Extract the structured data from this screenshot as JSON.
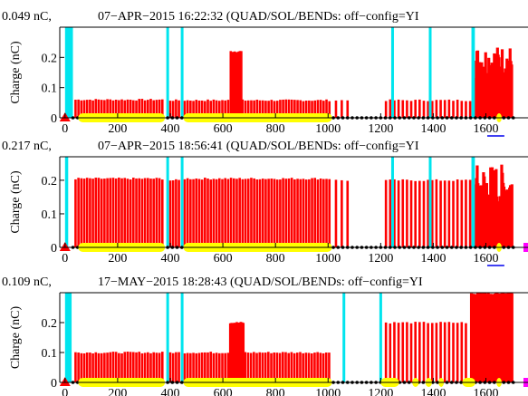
{
  "colors": {
    "bar_red": "#ff0000",
    "bar_cyan": "#00e5ee",
    "marker_yellow": "#ffff00",
    "marker_black": "#000000",
    "marker_red_triangle": "#ff0000",
    "marker_magenta": "#ff00ff",
    "link_blue": "#0000ee"
  },
  "chart_data": [
    {
      "type": "bar",
      "charge_label": "0.049 nC,",
      "title": "07−APR−2015 16:22:32 (QUAD/SOL/BENDs: off−config=YI",
      "ylabel": "Charge (nC)",
      "xlim": [
        -20,
        1760
      ],
      "ylim": [
        0,
        0.3
      ],
      "xticks": [
        0,
        200,
        400,
        600,
        800,
        1000,
        1200,
        1400,
        1600
      ],
      "xtick_labels": [
        "0",
        "200",
        "400",
        "600",
        "800",
        "1000",
        "1200",
        "1400",
        "1600"
      ],
      "yticks": [
        0.1,
        0.2
      ],
      "ytick_labels": [
        "0.1",
        "0.2"
      ],
      "segments": [
        {
          "start": 40,
          "end": 380,
          "step": 11,
          "value": 0.06
        },
        {
          "start": 400,
          "end": 438,
          "step": 11,
          "value": 0.058
        },
        {
          "start": 455,
          "end": 630,
          "step": 11,
          "value": 0.058
        },
        {
          "start": 630,
          "end": 670,
          "step": 5,
          "value": 0.22
        },
        {
          "start": 675,
          "end": 1010,
          "step": 11,
          "value": 0.058
        },
        {
          "start": 1030,
          "end": 1080,
          "step": 22,
          "value": 0.058
        },
        {
          "start": 1220,
          "end": 1555,
          "step": 16,
          "value": 0.058
        }
      ],
      "dense_region": {
        "start": 1560,
        "end": 1700,
        "step": 3,
        "min": 0.13,
        "max": 0.24
      },
      "cyan_bars": [
        {
          "x0": 0,
          "x1": 30,
          "value": 0.3
        },
        {
          "x0": 385,
          "x1": 393,
          "value": 0.3
        },
        {
          "x0": 440,
          "x1": 448,
          "value": 0.3
        },
        {
          "x0": 1240,
          "x1": 1248,
          "value": 0.3
        },
        {
          "x0": 1383,
          "x1": 1391,
          "value": 0.3
        },
        {
          "x0": 1545,
          "x1": 1558,
          "value": 0.3
        }
      ],
      "yellow_band": [
        {
          "x0": 50,
          "x1": 380
        },
        {
          "x0": 450,
          "x1": 1015
        },
        {
          "x0": 1640,
          "x1": 1660
        }
      ]
    },
    {
      "type": "bar",
      "charge_label": "0.217 nC,",
      "title": "07−APR−2015 18:56:41 (QUAD/SOL/BENDs: off−config=YI",
      "ylabel": "Charge (nC)",
      "xlim": [
        -20,
        1760
      ],
      "ylim": [
        0,
        0.27
      ],
      "xticks": [
        0,
        200,
        400,
        600,
        800,
        1000,
        1200,
        1400,
        1600
      ],
      "xtick_labels": [
        "0",
        "200",
        "400",
        "600",
        "800",
        "1000",
        "1200",
        "1400",
        "1600"
      ],
      "yticks": [
        0.1,
        0.2
      ],
      "ytick_labels": [
        "0.1",
        "0.2"
      ],
      "segments": [
        {
          "start": 40,
          "end": 380,
          "step": 11,
          "value": 0.205
        },
        {
          "start": 400,
          "end": 438,
          "step": 11,
          "value": 0.2
        },
        {
          "start": 455,
          "end": 1010,
          "step": 11,
          "value": 0.205
        },
        {
          "start": 1030,
          "end": 1080,
          "step": 22,
          "value": 0.2
        },
        {
          "start": 1220,
          "end": 1540,
          "step": 16,
          "value": 0.2
        }
      ],
      "dense_region": {
        "start": 1555,
        "end": 1700,
        "step": 3,
        "min": 0.1,
        "max": 0.25
      },
      "cyan_bars": [
        {
          "x0": 0,
          "x1": 12,
          "value": 0.27
        },
        {
          "x0": 385,
          "x1": 393,
          "value": 0.27
        },
        {
          "x0": 440,
          "x1": 448,
          "value": 0.27
        },
        {
          "x0": 1240,
          "x1": 1248,
          "value": 0.27
        },
        {
          "x0": 1383,
          "x1": 1391,
          "value": 0.27
        },
        {
          "x0": 1545,
          "x1": 1558,
          "value": 0.27
        }
      ],
      "yellow_band": [
        {
          "x0": 50,
          "x1": 380
        },
        {
          "x0": 450,
          "x1": 1015
        },
        {
          "x0": 1640,
          "x1": 1660
        }
      ]
    },
    {
      "type": "bar",
      "charge_label": "0.109 nC,",
      "title": "17−MAY−2015 18:28:43 (QUAD/SOL/BENDs: off−config=YI",
      "ylabel": "Charge (nC)",
      "xlim": [
        -20,
        1760
      ],
      "ylim": [
        0,
        0.3
      ],
      "xticks": [
        0,
        200,
        400,
        600,
        800,
        1000,
        1200,
        1400,
        1600
      ],
      "xtick_labels": [
        "0",
        "200",
        "400",
        "600",
        "800",
        "1000",
        "1200",
        "1400",
        "1600"
      ],
      "yticks": [
        0.1,
        0.2
      ],
      "ytick_labels": [
        "0.1",
        "0.2"
      ],
      "segments": [
        {
          "start": 40,
          "end": 380,
          "step": 11,
          "value": 0.1
        },
        {
          "start": 400,
          "end": 438,
          "step": 11,
          "value": 0.1
        },
        {
          "start": 455,
          "end": 625,
          "step": 11,
          "value": 0.1
        },
        {
          "start": 628,
          "end": 680,
          "step": 5,
          "value": 0.2
        },
        {
          "start": 685,
          "end": 1010,
          "step": 11,
          "value": 0.1
        },
        {
          "start": 1220,
          "end": 1530,
          "step": 16,
          "value": 0.2
        }
      ],
      "dense_region": {
        "start": 1545,
        "end": 1700,
        "step": 2,
        "min": 0.29,
        "max": 0.3
      },
      "cyan_bars": [
        {
          "x0": 0,
          "x1": 25,
          "value": 0.3
        },
        {
          "x0": 385,
          "x1": 393,
          "value": 0.3
        },
        {
          "x0": 440,
          "x1": 448,
          "value": 0.3
        },
        {
          "x0": 1055,
          "x1": 1063,
          "value": 0.3
        },
        {
          "x0": 1195,
          "x1": 1203,
          "value": 0.3
        }
      ],
      "yellow_band": [
        {
          "x0": 50,
          "x1": 380
        },
        {
          "x0": 450,
          "x1": 1015
        },
        {
          "x0": 1200,
          "x1": 1270
        },
        {
          "x0": 1320,
          "x1": 1345
        },
        {
          "x0": 1370,
          "x1": 1395
        },
        {
          "x0": 1420,
          "x1": 1440
        },
        {
          "x0": 1510,
          "x1": 1560
        },
        {
          "x0": 1640,
          "x1": 1660
        }
      ]
    }
  ]
}
